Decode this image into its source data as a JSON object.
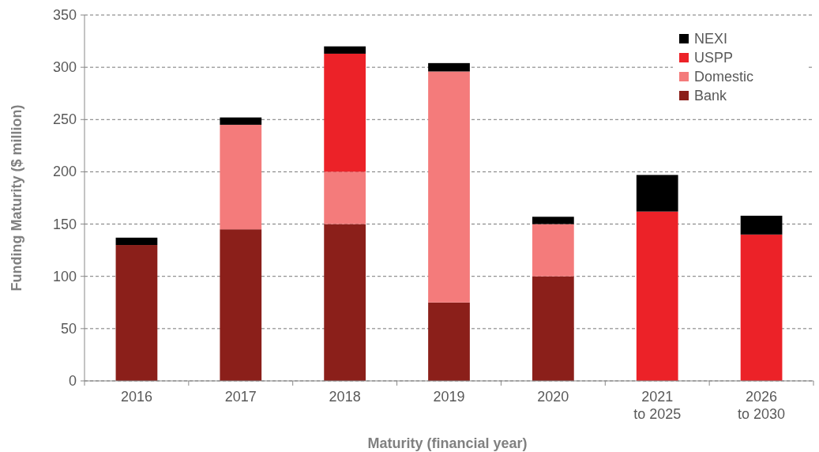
{
  "chart_data": {
    "type": "bar",
    "stacked": true,
    "xlabel": "Maturity (financial year)",
    "ylabel": "Funding Maturity ($ million)",
    "categories": [
      "2016",
      "2017",
      "2018",
      "2019",
      "2020",
      "2021\nto 2025",
      "2026\nto 2030"
    ],
    "series": [
      {
        "name": "Bank",
        "color": "#8b1f1a",
        "values": [
          130,
          145,
          150,
          75,
          100,
          null,
          null
        ]
      },
      {
        "name": "Domestic",
        "color": "#f47b7b",
        "values": [
          null,
          100,
          50,
          221,
          50,
          null,
          null
        ]
      },
      {
        "name": "USPP",
        "color": "#ec2228",
        "values": [
          null,
          null,
          113,
          null,
          null,
          162,
          140
        ]
      },
      {
        "name": "NEXI",
        "color": "#000000",
        "values": [
          7,
          7,
          7,
          8,
          7,
          35,
          18
        ]
      }
    ],
    "ylim": [
      0,
      350
    ],
    "yticks": [
      0,
      50,
      100,
      150,
      200,
      250,
      300,
      350
    ],
    "grid": "y",
    "legend": "top right"
  }
}
